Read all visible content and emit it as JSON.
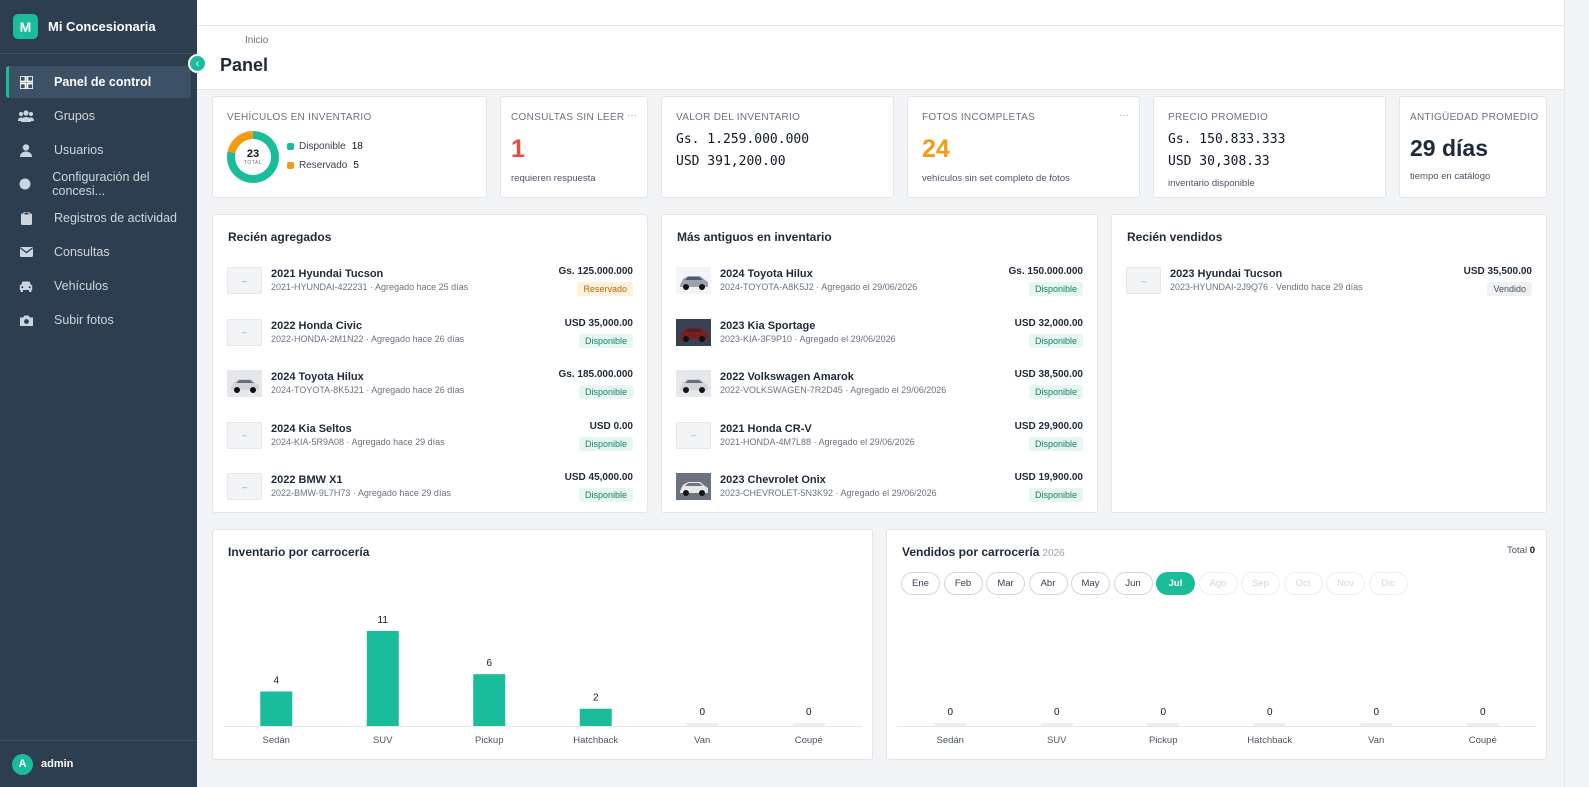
{
  "app": {
    "brand_letter": "M",
    "brand_name": "Mi Concesionaria",
    "collapse_icon": "chevron-left-icon"
  },
  "sidebar": {
    "items": [
      {
        "label": "Panel de control",
        "icon": "dashboard-grid-icon",
        "active": true
      },
      {
        "label": "Grupos",
        "icon": "users-group-icon"
      },
      {
        "label": "Usuarios",
        "icon": "user-icon"
      },
      {
        "label": "Configuración del concesi...",
        "icon": "settings-dot-icon"
      },
      {
        "label": "Registros de actividad",
        "icon": "clipboard-icon"
      },
      {
        "label": "Consultas",
        "icon": "envelope-icon"
      },
      {
        "label": "Vehículos",
        "icon": "car-icon"
      },
      {
        "label": "Subir fotos",
        "icon": "camera-icon"
      }
    ],
    "user": {
      "initial": "A",
      "name": "admin"
    }
  },
  "header": {
    "breadcrumb": "Inicio",
    "title": "Panel"
  },
  "kpis": {
    "inventory": {
      "label": "Vehículos en inventario",
      "total": "23",
      "total_label": "TOTAL",
      "legend": [
        {
          "label": "Disponible",
          "value": "18",
          "color": "#1abc9c"
        },
        {
          "label": "Reservado",
          "value": "5",
          "color": "#f39c12"
        }
      ]
    },
    "unread": {
      "label": "Consultas sin leer",
      "value": "1",
      "sub": "requieren respuesta",
      "dots": "···"
    },
    "inventory_value": {
      "label": "Valor del inventario",
      "gs": "Gs. 1.259.000.000",
      "usd": "USD 391,200.00"
    },
    "photos": {
      "label": "Fotos incompletas",
      "value": "24",
      "sub": "vehículos sin set completo de fotos",
      "dots": "···"
    },
    "avg_price": {
      "label": "Precio promedio",
      "gs": "Gs. 150.833.333",
      "usd": "USD 30,308.33",
      "sub": "inventario disponible"
    },
    "avg_age": {
      "label": "Antigüedad promedio",
      "value": "29 días",
      "sub": "tiempo en catálogo"
    }
  },
  "recent": {
    "title": "Recién agregados",
    "rows": [
      {
        "name": "2021 Hyundai Tucson",
        "sub": "2021-HYUNDAI-422231 · Agregado hace 25 días",
        "price": "Gs. 125.000.000",
        "status": "Reservado",
        "type": "res",
        "thumb": false
      },
      {
        "name": "2022 Honda Civic",
        "sub": "2022-HONDA-2M1N22 · Agregado hace 26 días",
        "price": "USD 35,000.00",
        "status": "Disponible",
        "type": "ok",
        "thumb": false
      },
      {
        "name": "2024 Toyota Hilux",
        "sub": "2024-TOYOTA-8K5J21 · Agregado hace 26 días",
        "price": "Gs. 185.000.000",
        "status": "Disponible",
        "type": "ok",
        "thumb": true
      },
      {
        "name": "2024 Kia Seltos",
        "sub": "2024-KIA-5R9A08 · Agregado hace 29 días",
        "price": "USD 0.00",
        "status": "Disponible",
        "type": "ok",
        "thumb": false
      },
      {
        "name": "2022 BMW X1",
        "sub": "2022-BMW-9L7H73 · Agregado hace 29 días",
        "price": "USD 45,000.00",
        "status": "Disponible",
        "type": "ok",
        "thumb": false
      }
    ]
  },
  "oldest": {
    "title": "Más antiguos en inventario",
    "rows": [
      {
        "name": "2024 Toyota Hilux",
        "sub": "2024-TOYOTA-A8K5J2 · Agregado el 29/06/2026",
        "price": "Gs. 150.000.000",
        "status": "Disponible",
        "type": "ok",
        "thumb": true
      },
      {
        "name": "2023 Kia Sportage",
        "sub": "2023-KIA-3F9P10 · Agregado el 29/06/2026",
        "price": "USD 32,000.00",
        "status": "Disponible",
        "type": "ok",
        "thumb": true
      },
      {
        "name": "2022 Volkswagen Amarok",
        "sub": "2022-VOLKSWAGEN-7R2D45 · Agregado el 29/06/2026",
        "price": "USD 38,500.00",
        "status": "Disponible",
        "type": "ok",
        "thumb": true
      },
      {
        "name": "2021 Honda CR-V",
        "sub": "2021-HONDA-4M7L88 · Agregado el 29/06/2026",
        "price": "USD 29,900.00",
        "status": "Disponible",
        "type": "ok",
        "thumb": false
      },
      {
        "name": "2023 Chevrolet Onix",
        "sub": "2023-CHEVROLET-5N3K92 · Agregado el 29/06/2026",
        "price": "USD 19,900.00",
        "status": "Disponible",
        "type": "ok",
        "thumb": true
      }
    ]
  },
  "sold": {
    "title": "Recién vendidos",
    "rows": [
      {
        "name": "2023 Hyundai Tucson",
        "sub": "2023-HYUNDAI-2J9Q76 · Vendido hace 29 días",
        "price": "USD 35,500.00",
        "status": "Vendido",
        "type": "sold",
        "thumb": false
      }
    ]
  },
  "chart_data": [
    {
      "type": "bar",
      "title": "Inventario por carrocería",
      "categories": [
        "Sedán",
        "SUV",
        "Pickup",
        "Hatchback",
        "Van",
        "Coupé"
      ],
      "values": [
        4,
        11,
        6,
        2,
        0,
        0
      ],
      "bar_color": "#1abc9c"
    },
    {
      "type": "bar",
      "title": "Vendidos por carrocería",
      "year": "2026",
      "total_label": "Total",
      "total": "0",
      "months": [
        {
          "label": "Ene",
          "state": "normal"
        },
        {
          "label": "Feb",
          "state": "normal"
        },
        {
          "label": "Mar",
          "state": "normal"
        },
        {
          "label": "Abr",
          "state": "normal"
        },
        {
          "label": "May",
          "state": "normal"
        },
        {
          "label": "Jun",
          "state": "normal"
        },
        {
          "label": "Jul",
          "state": "active"
        },
        {
          "label": "Ago",
          "state": "disabled"
        },
        {
          "label": "Sep",
          "state": "disabled"
        },
        {
          "label": "Oct",
          "state": "disabled"
        },
        {
          "label": "Nov",
          "state": "disabled"
        },
        {
          "label": "Dic",
          "state": "disabled"
        }
      ],
      "categories": [
        "Sedán",
        "SUV",
        "Pickup",
        "Hatchback",
        "Van",
        "Coupé"
      ],
      "values": [
        0,
        0,
        0,
        0,
        0,
        0
      ],
      "bar_color": "#1abc9c"
    }
  ],
  "colors": {
    "accent": "#1abc9c",
    "warning": "#f39c12",
    "danger": "#e74c3c",
    "sidebar": "#2c3e50"
  }
}
